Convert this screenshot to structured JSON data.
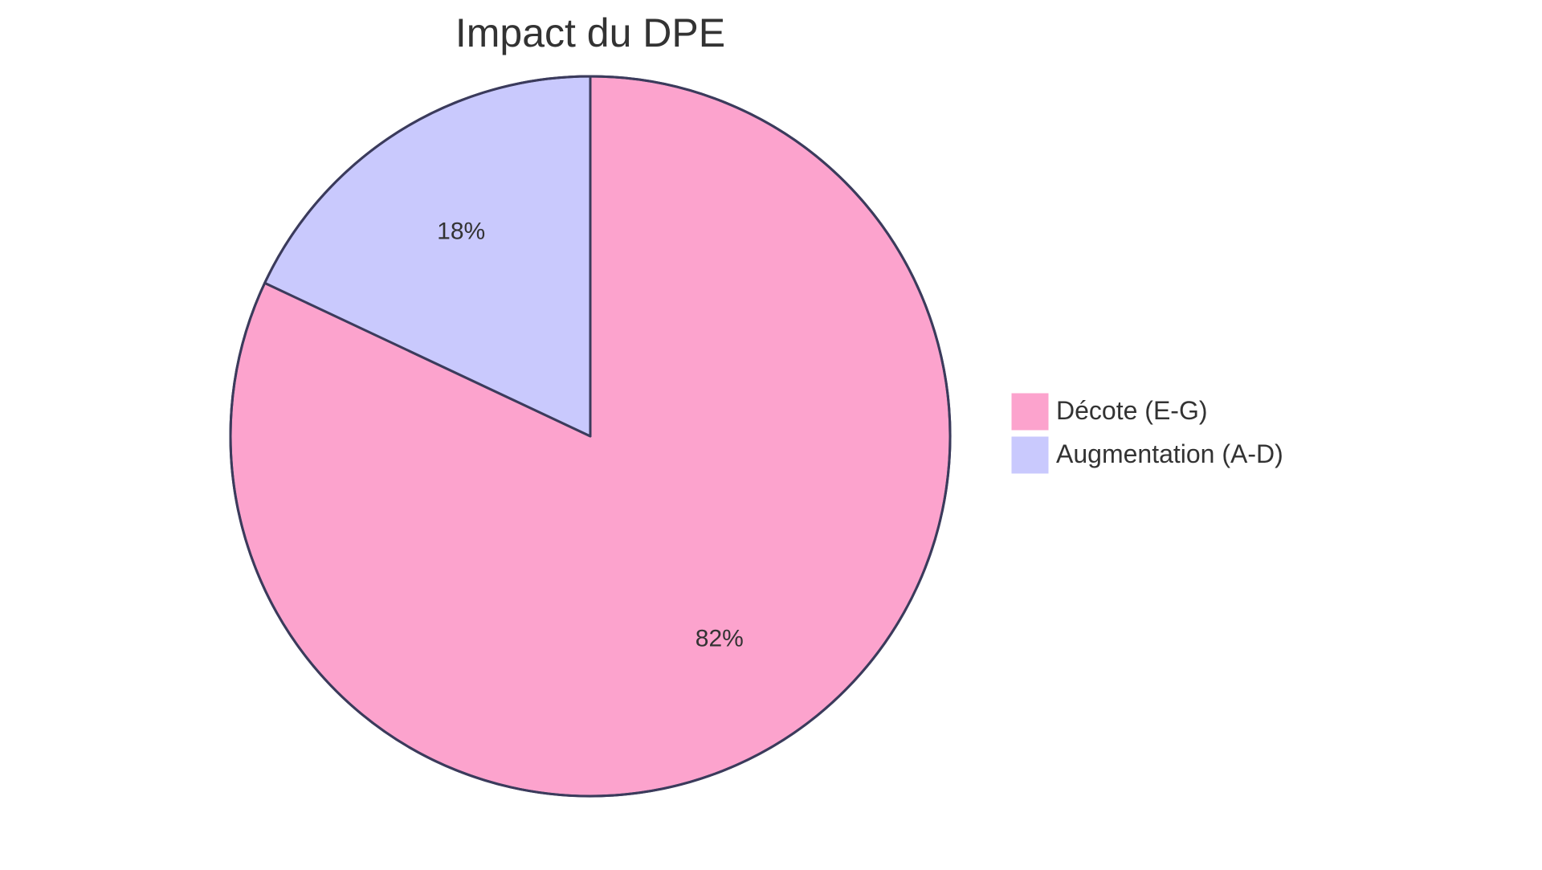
{
  "chart_data": {
    "type": "pie",
    "title": "Impact du DPE",
    "start_angle_deg": 0,
    "direction": "clockwise",
    "legend_position": "right",
    "slices": [
      {
        "label": "Décote (E-G)",
        "value": 82,
        "display": "82%",
        "color": "#FCA3CD"
      },
      {
        "label": "Augmentation (A-D)",
        "value": 18,
        "display": "18%",
        "color": "#C9C9FD"
      }
    ],
    "stroke_color": "#3B3B5C"
  }
}
